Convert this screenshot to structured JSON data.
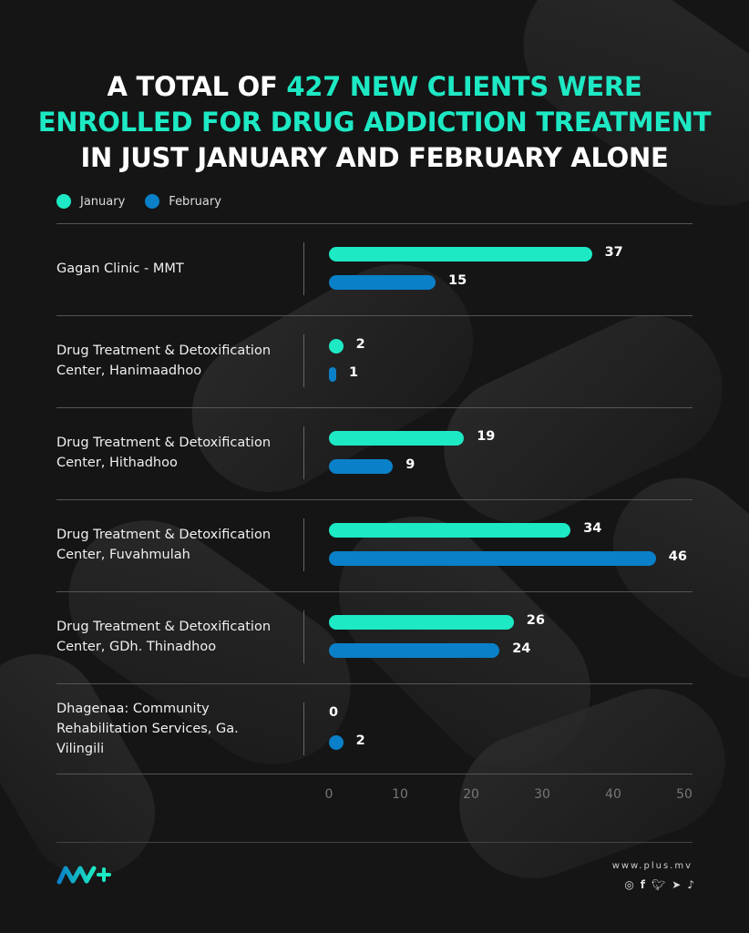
{
  "chart_data": {
    "type": "bar",
    "orientation": "horizontal",
    "title": {
      "part1": "A TOTAL OF ",
      "highlight": "427 NEW CLIENTS WERE",
      "line2": "ENROLLED FOR DRUG ADDICTION TREATMENT",
      "line3": "IN JUST JANUARY AND FEBRUARY ALONE"
    },
    "categories": [
      [
        "Gagan Clinic - MMT"
      ],
      [
        "Drug Treatment & Detoxification",
        "Center, Hanimaadhoo"
      ],
      [
        "Drug Treatment & Detoxification",
        "Center, Hithadhoo"
      ],
      [
        "Drug Treatment & Detoxification",
        "Center, Fuvahmulah"
      ],
      [
        "Drug Treatment & Detoxification",
        "Center, GDh. Thinadhoo"
      ],
      [
        "Dhagenaa: Community",
        "Rehabilitation Services, Ga.",
        "Vilingili"
      ]
    ],
    "series": [
      {
        "name": "January",
        "color": "#1de9c4",
        "values": [
          37,
          2,
          19,
          34,
          26,
          0
        ]
      },
      {
        "name": "February",
        "color": "#0a80c8",
        "values": [
          15,
          1,
          9,
          46,
          24,
          2
        ]
      }
    ],
    "xlim": [
      0,
      50
    ],
    "xticks": [
      "0",
      "10",
      "20",
      "30",
      "40",
      "50"
    ],
    "legend": "top-left"
  },
  "footer": {
    "url": "www.plus.mv",
    "social_icons": [
      "instagram-icon",
      "facebook-icon",
      "twitter-icon",
      "telegram-icon",
      "tiktok-icon"
    ]
  }
}
